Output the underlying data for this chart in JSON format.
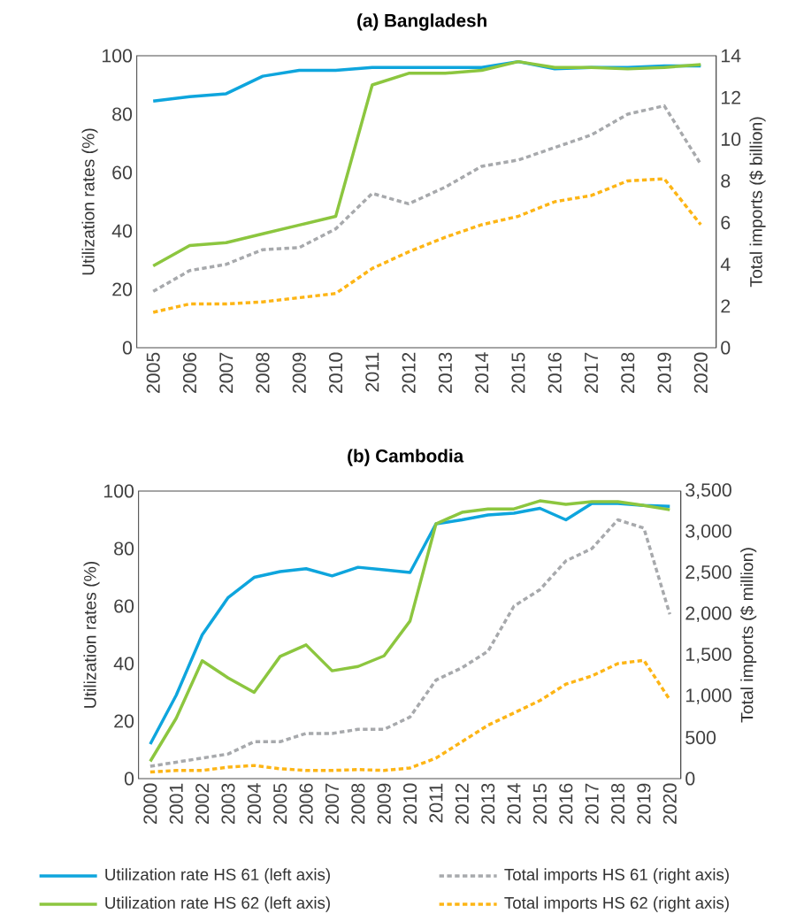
{
  "chart_data": [
    {
      "type": "line",
      "title": "(a) Bangladesh",
      "ylabel": "Utilization rates (%)",
      "y2label": "Total imports ($ billion)",
      "categories": [
        "2005",
        "2006",
        "2007",
        "2008",
        "2009",
        "2010",
        "2011",
        "2012",
        "2013",
        "2014",
        "2015",
        "2016",
        "2017",
        "2018",
        "2019",
        "2020"
      ],
      "ylim": [
        0,
        100
      ],
      "yticks": [
        0,
        20,
        40,
        60,
        80,
        100
      ],
      "y2lim": [
        0,
        14
      ],
      "y2ticks": [
        0,
        2,
        4,
        6,
        8,
        10,
        12,
        14
      ],
      "grid": false,
      "series": [
        {
          "color": "#0ea5dd",
          "line_style": "solid",
          "values": [
            84.5,
            86,
            87,
            93,
            95,
            95,
            96,
            96,
            96,
            96,
            98,
            95.5,
            96,
            96,
            96.5,
            96.5
          ]
        },
        {
          "color": "#8cc63f",
          "line_style": "solid",
          "values": [
            28,
            35,
            36,
            39,
            42,
            45,
            90,
            94,
            94,
            95,
            98,
            96,
            96,
            95.5,
            96,
            97
          ]
        },
        {
          "color": "#a7a9ac",
          "line_style": "dashed",
          "axis": "y2",
          "values": [
            2.7,
            3.7,
            4.0,
            4.7,
            4.8,
            5.7,
            7.4,
            6.9,
            7.7,
            8.7,
            9.0,
            9.6,
            10.2,
            11.2,
            11.6,
            8.8
          ]
        },
        {
          "color": "#fdb515",
          "line_style": "dashed",
          "axis": "y2",
          "values": [
            1.7,
            2.1,
            2.1,
            2.2,
            2.4,
            2.6,
            3.8,
            4.6,
            5.3,
            5.9,
            6.3,
            7.0,
            7.3,
            8.0,
            8.1,
            5.9
          ]
        }
      ]
    },
    {
      "type": "line",
      "title": "(b) Cambodia",
      "ylabel": "Utilization rates (%)",
      "y2label": "Total imports ($ million)",
      "categories": [
        "2000",
        "2001",
        "2002",
        "2003",
        "2004",
        "2005",
        "2006",
        "2007",
        "2008",
        "2009",
        "2010",
        "2011",
        "2012",
        "2013",
        "2014",
        "2015",
        "2016",
        "2017",
        "2018",
        "2019",
        "2020"
      ],
      "ylim": [
        0,
        100
      ],
      "yticks": [
        0,
        20,
        40,
        60,
        80,
        100
      ],
      "y2lim": [
        0,
        3500
      ],
      "y2ticks": [
        0,
        500,
        {
          "value": 1000,
          "label": "1,000"
        },
        {
          "value": 1500,
          "label": "1,500"
        },
        {
          "value": 2000,
          "label": "2,000"
        },
        {
          "value": 2500,
          "label": "2,500"
        },
        {
          "value": 3000,
          "label": "3,000"
        },
        {
          "value": 3500,
          "label": "3,500"
        }
      ],
      "grid": false,
      "legend": "bottom",
      "series": [
        {
          "name": "Utilization rate HS 61 (left axis)",
          "color": "#0ea5dd",
          "line_style": "solid",
          "values": [
            12,
            29,
            50,
            63,
            70,
            72,
            73,
            70.5,
            73.5,
            72.6,
            71.7,
            88.6,
            90,
            91.7,
            92.3,
            94,
            90,
            95.7,
            95.7,
            95,
            94.7
          ]
        },
        {
          "name": "Utilization rate HS 62 (left axis)",
          "color": "#8cc63f",
          "line_style": "solid",
          "values": [
            6,
            21,
            41,
            35,
            30,
            42.5,
            46.5,
            37.5,
            39,
            42.7,
            54.8,
            88.6,
            92.6,
            93.8,
            93.8,
            96.6,
            95.4,
            96.3,
            96.3,
            95,
            93.5
          ]
        },
        {
          "name": "Total imports HS 61 (right axis)",
          "color": "#a7a9ac",
          "line_style": "dashed",
          "axis": "y2",
          "values": [
            150,
            200,
            250,
            300,
            450,
            450,
            550,
            550,
            600,
            600,
            750,
            1200,
            1350,
            1550,
            2100,
            2300,
            2650,
            2800,
            3150,
            3050,
            2000
          ]
        },
        {
          "name": "Total imports HS 62 (right axis)",
          "color": "#fdb515",
          "line_style": "dashed",
          "axis": "y2",
          "values": [
            80,
            100,
            100,
            140,
            160,
            120,
            100,
            100,
            110,
            100,
            130,
            250,
            450,
            650,
            800,
            950,
            1150,
            1250,
            1400,
            1440,
            960
          ]
        }
      ]
    }
  ]
}
